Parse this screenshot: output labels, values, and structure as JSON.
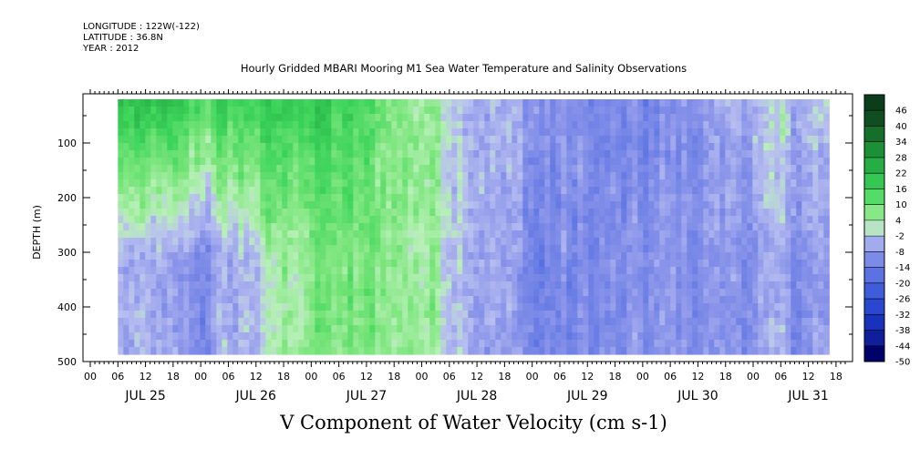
{
  "header": {
    "longitude": "LONGITUDE : 122W(-122)",
    "latitude": "LATITUDE : 36.8N",
    "year": "YEAR : 2012"
  },
  "chart_data": {
    "type": "heatmap",
    "title": "Hourly Gridded MBARI Mooring M1 Sea Water Temperature and Salinity Observations",
    "xlabel": "V Component of Water Velocity (cm s-1)",
    "ylabel": "DEPTH (m)",
    "ylim": [
      500,
      10
    ],
    "y_ticks": [
      100,
      200,
      300,
      400,
      500
    ],
    "y_tick_labels": [
      "100",
      "200",
      "300",
      "400",
      "500"
    ],
    "x_hour_ticks": [
      "00",
      "06",
      "12",
      "18",
      "00",
      "06",
      "12",
      "18",
      "00",
      "06",
      "12",
      "18",
      "00",
      "06",
      "12",
      "18",
      "00",
      "06",
      "12",
      "18",
      "00",
      "06",
      "12",
      "18",
      "00",
      "06",
      "12",
      "18"
    ],
    "x_day_labels": [
      "JUL 25",
      "JUL 26",
      "JUL 27",
      "JUL 28",
      "JUL 29",
      "JUL 30",
      "JUL 31"
    ],
    "colorbar": {
      "levels": [
        46,
        40,
        34,
        28,
        22,
        16,
        10,
        4,
        -2,
        -8,
        -14,
        -20,
        -26,
        -32,
        -38,
        -44,
        -50
      ],
      "labels": [
        "46",
        "40",
        "34",
        "28",
        "22",
        "16",
        "10",
        "4",
        "-2",
        "-8",
        "-14",
        "-20",
        "-26",
        "-32",
        "-38",
        "-44",
        "-50"
      ]
    },
    "data_start_hour": 6,
    "data_end_hour": 160,
    "field_description_by_day": [
      {
        "day": "JUL 25",
        "upper_mean": 20,
        "lower_mean": -4
      },
      {
        "day": "JUL 26",
        "upper_mean": 16,
        "lower_mean": -10
      },
      {
        "day": "JUL 27",
        "upper_mean": 18,
        "lower_mean": 8
      },
      {
        "day": "JUL 28",
        "upper_mean": 6,
        "lower_mean": 6
      },
      {
        "day": "JUL 29",
        "upper_mean": -8,
        "lower_mean": -12
      },
      {
        "day": "JUL 30",
        "upper_mean": -14,
        "lower_mean": -10
      },
      {
        "day": "JUL 31",
        "upper_mean": -2,
        "lower_mean": -8
      }
    ]
  },
  "colors": {
    "positive_max": "#0b3d1a",
    "positive_mid": "#21c04a",
    "positive_low": "#a8eea8",
    "negative_low": "#b8bff0",
    "negative_mid": "#3a5ae0",
    "negative_max": "#00006a"
  }
}
